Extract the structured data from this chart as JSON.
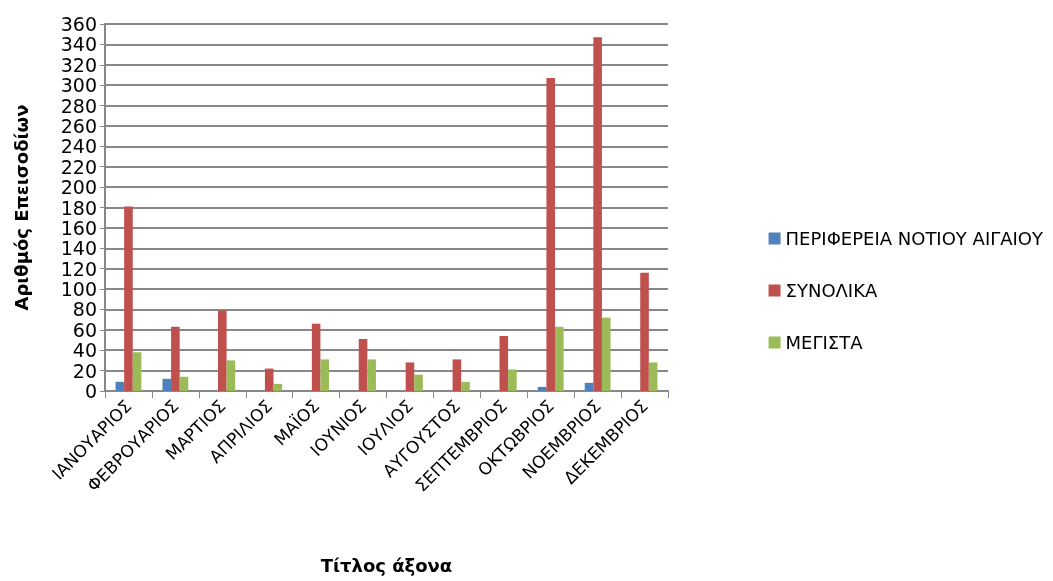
{
  "chart_data": {
    "type": "bar",
    "xlabel": "Τίτλος άξονα",
    "ylabel": "Αριθμός Επεισοδίων",
    "categories": [
      "ΙΑΝΟΥΑΡΙΟΣ",
      "ΦΕΒΡΟΥΑΡΙΟΣ",
      "ΜΑΡΤΙΟΣ",
      "ΑΠΡΙΛΙΟΣ",
      "ΜΑΪΟΣ",
      "ΙΟΥΝΙΟΣ",
      "ΙΟΥΛΙΟΣ",
      "ΑΥΓΟΥΣΤΟΣ",
      "ΣΕΠΤΕΜΒΡΙΟΣ",
      "ΟΚΤΩΒΡΙΟΣ",
      "ΝΟΕΜΒΡΙΟΣ",
      "ΔΕΚΕΜΒΡΙΟΣ"
    ],
    "series": [
      {
        "name": "ΠΕΡΙΦΕΡΕΙΑ ΝΟΤΙΟΥ ΑΙΓΑΙΟΥ",
        "color": "#4f81bd",
        "values": [
          9,
          12,
          null,
          null,
          null,
          null,
          null,
          null,
          null,
          4,
          8,
          null
        ]
      },
      {
        "name": "ΣΥΝΟΛΙΚΑ",
        "color": "#c0504d",
        "values": [
          181,
          63,
          79,
          22,
          66,
          51,
          28,
          31,
          54,
          307,
          347,
          116
        ]
      },
      {
        "name": "ΜΕΓΙΣΤΑ",
        "color": "#9bbb59",
        "values": [
          38,
          14,
          30,
          7,
          31,
          31,
          16,
          9,
          21,
          63,
          72,
          28
        ]
      }
    ],
    "ylim": [
      0,
      360
    ],
    "yticks": [
      0,
      20,
      40,
      60,
      80,
      100,
      120,
      140,
      160,
      180,
      200,
      220,
      240,
      260,
      280,
      300,
      320,
      340,
      360
    ],
    "grid": "y",
    "legend": "right"
  }
}
